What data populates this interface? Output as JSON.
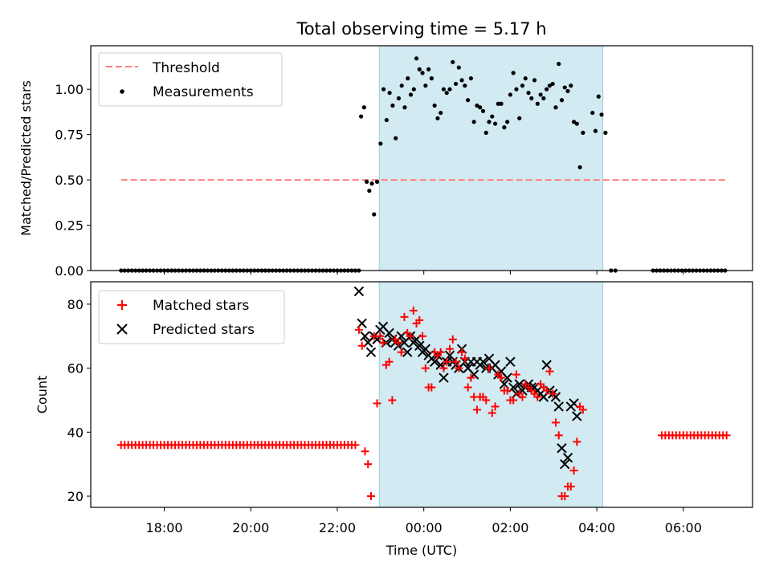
{
  "chart_data": {
    "type": "scatter",
    "title": "Total observing time = 5.17 h",
    "xlabel": "Time (UTC)",
    "xticks": [
      {
        "hour": 18,
        "label": "18:00"
      },
      {
        "hour": 20,
        "label": "20:00"
      },
      {
        "hour": 22,
        "label": "22:00"
      },
      {
        "hour": 24,
        "label": "00:00"
      },
      {
        "hour": 26,
        "label": "02:00"
      },
      {
        "hour": 28,
        "label": "04:00"
      },
      {
        "hour": 30,
        "label": "06:00"
      }
    ],
    "xlim": [
      16.3,
      31.6
    ],
    "shaded_interval": [
      22.97,
      28.14
    ],
    "colors": {
      "shade": "#add8e6",
      "threshold": "#ff7f7f",
      "measurements": "#000000",
      "matched": "#ff0000",
      "predicted": "#000000"
    },
    "panels": [
      {
        "ylabel": "Matched/Predicted stars",
        "ylim": [
          0,
          1.24
        ],
        "yticks": [
          "0.00",
          "0.25",
          "0.50",
          "0.75",
          "1.00"
        ],
        "legend": [
          "Threshold",
          "Measurements"
        ],
        "threshold": {
          "x": [
            17.0,
            31.0
          ],
          "y": 0.5
        },
        "measurements": {
          "zeros_before": [
            17.0,
            22.55
          ],
          "zeros_after": [
            29.3,
            31.0
          ],
          "zeros_extra": [
            28.33,
            28.43
          ],
          "points": [
            [
              22.55,
              0.85
            ],
            [
              22.62,
              0.9
            ],
            [
              22.68,
              0.49
            ],
            [
              22.74,
              0.44
            ],
            [
              22.8,
              0.48
            ],
            [
              22.85,
              0.31
            ],
            [
              22.92,
              0.49
            ],
            [
              23.0,
              0.7
            ],
            [
              23.07,
              1.0
            ],
            [
              23.14,
              0.83
            ],
            [
              23.21,
              0.98
            ],
            [
              23.28,
              0.91
            ],
            [
              23.35,
              0.73
            ],
            [
              23.42,
              0.95
            ],
            [
              23.49,
              1.02
            ],
            [
              23.56,
              0.9
            ],
            [
              23.63,
              1.06
            ],
            [
              23.7,
              0.97
            ],
            [
              23.77,
              1.0
            ],
            [
              23.83,
              1.17
            ],
            [
              23.9,
              1.11
            ],
            [
              23.97,
              1.09
            ],
            [
              24.04,
              1.02
            ],
            [
              24.11,
              1.11
            ],
            [
              24.18,
              1.06
            ],
            [
              24.25,
              0.91
            ],
            [
              24.32,
              0.84
            ],
            [
              24.39,
              0.87
            ],
            [
              24.46,
              1.0
            ],
            [
              24.53,
              0.98
            ],
            [
              24.6,
              1.0
            ],
            [
              24.67,
              1.15
            ],
            [
              24.74,
              1.03
            ],
            [
              24.81,
              1.12
            ],
            [
              24.88,
              1.05
            ],
            [
              24.95,
              1.02
            ],
            [
              25.02,
              0.94
            ],
            [
              25.09,
              1.06
            ],
            [
              25.16,
              0.82
            ],
            [
              25.23,
              0.91
            ],
            [
              25.3,
              0.9
            ],
            [
              25.37,
              0.88
            ],
            [
              25.44,
              0.76
            ],
            [
              25.51,
              0.82
            ],
            [
              25.58,
              0.85
            ],
            [
              25.65,
              0.81
            ],
            [
              25.72,
              0.92
            ],
            [
              25.79,
              0.92
            ],
            [
              25.86,
              0.79
            ],
            [
              25.93,
              0.82
            ],
            [
              26.0,
              0.97
            ],
            [
              26.07,
              1.09
            ],
            [
              26.14,
              1.0
            ],
            [
              26.21,
              0.84
            ],
            [
              26.28,
              1.02
            ],
            [
              26.35,
              1.06
            ],
            [
              26.42,
              0.98
            ],
            [
              26.49,
              0.95
            ],
            [
              26.56,
              1.05
            ],
            [
              26.63,
              0.92
            ],
            [
              26.7,
              0.97
            ],
            [
              26.77,
              0.95
            ],
            [
              26.84,
              1.0
            ],
            [
              26.91,
              1.02
            ],
            [
              26.98,
              1.03
            ],
            [
              27.05,
              0.9
            ],
            [
              27.12,
              1.14
            ],
            [
              27.19,
              0.94
            ],
            [
              27.26,
              1.01
            ],
            [
              27.33,
              0.99
            ],
            [
              27.4,
              1.02
            ],
            [
              27.47,
              0.82
            ],
            [
              27.54,
              0.81
            ],
            [
              27.61,
              0.57
            ],
            [
              27.68,
              0.76
            ],
            [
              27.9,
              0.87
            ],
            [
              27.97,
              0.77
            ],
            [
              28.04,
              0.96
            ],
            [
              28.11,
              0.86
            ],
            [
              28.2,
              0.76
            ]
          ]
        }
      },
      {
        "ylabel": "Count",
        "ylim": [
          16.5,
          87
        ],
        "yticks": [
          "20",
          "40",
          "60",
          "80"
        ],
        "legend": [
          "Matched stars",
          "Predicted stars"
        ],
        "matched": {
          "baseline_before": {
            "x": [
              17.0,
              22.42
            ],
            "y": 36
          },
          "baseline_after": {
            "x": [
              29.5,
              31.0
            ],
            "y": 39
          },
          "points": [
            [
              22.5,
              72
            ],
            [
              22.57,
              67
            ],
            [
              22.64,
              34
            ],
            [
              22.71,
              30
            ],
            [
              22.78,
              20
            ],
            [
              22.85,
              70
            ],
            [
              22.92,
              49
            ],
            [
              22.99,
              70
            ],
            [
              23.06,
              68
            ],
            [
              23.13,
              61
            ],
            [
              23.2,
              62
            ],
            [
              23.27,
              50
            ],
            [
              23.34,
              69
            ],
            [
              23.41,
              68
            ],
            [
              23.48,
              65
            ],
            [
              23.55,
              76
            ],
            [
              23.62,
              71
            ],
            [
              23.69,
              70
            ],
            [
              23.76,
              78
            ],
            [
              23.83,
              74
            ],
            [
              23.9,
              75
            ],
            [
              23.97,
              70
            ],
            [
              24.04,
              60
            ],
            [
              24.11,
              54
            ],
            [
              24.18,
              54
            ],
            [
              24.25,
              65
            ],
            [
              24.32,
              64
            ],
            [
              24.39,
              65
            ],
            [
              24.46,
              60
            ],
            [
              24.53,
              62
            ],
            [
              24.6,
              66
            ],
            [
              24.67,
              69
            ],
            [
              24.74,
              62
            ],
            [
              24.81,
              60
            ],
            [
              24.88,
              65
            ],
            [
              24.95,
              63
            ],
            [
              25.02,
              54
            ],
            [
              25.09,
              57
            ],
            [
              25.16,
              51
            ],
            [
              25.23,
              47
            ],
            [
              25.3,
              51
            ],
            [
              25.37,
              51
            ],
            [
              25.44,
              50
            ],
            [
              25.51,
              60
            ],
            [
              25.58,
              46
            ],
            [
              25.65,
              48
            ],
            [
              25.72,
              58
            ],
            [
              25.79,
              57
            ],
            [
              25.86,
              53
            ],
            [
              25.93,
              53
            ],
            [
              26.0,
              50
            ],
            [
              26.07,
              50
            ],
            [
              26.14,
              58
            ],
            [
              26.21,
              52
            ],
            [
              26.28,
              51
            ],
            [
              26.35,
              55
            ],
            [
              26.42,
              54
            ],
            [
              26.49,
              53
            ],
            [
              26.56,
              52
            ],
            [
              26.63,
              51
            ],
            [
              26.7,
              55
            ],
            [
              26.77,
              54
            ],
            [
              26.84,
              53
            ],
            [
              26.91,
              59
            ],
            [
              26.98,
              52
            ],
            [
              27.05,
              43
            ],
            [
              27.12,
              39
            ],
            [
              27.19,
              20
            ],
            [
              27.26,
              20
            ],
            [
              27.33,
              23
            ],
            [
              27.4,
              23
            ],
            [
              27.47,
              28
            ],
            [
              27.54,
              37
            ],
            [
              27.61,
              48
            ],
            [
              27.68,
              47
            ]
          ]
        },
        "predicted": {
          "points": [
            [
              22.5,
              84
            ],
            [
              22.57,
              74
            ],
            [
              22.64,
              70
            ],
            [
              22.71,
              68
            ],
            [
              22.78,
              65
            ],
            [
              22.85,
              70
            ],
            [
              22.92,
              69
            ],
            [
              22.99,
              72
            ],
            [
              23.06,
              73
            ],
            [
              23.13,
              68
            ],
            [
              23.2,
              71
            ],
            [
              23.27,
              69
            ],
            [
              23.34,
              68
            ],
            [
              23.41,
              67
            ],
            [
              23.48,
              70
            ],
            [
              23.55,
              68
            ],
            [
              23.62,
              65
            ],
            [
              23.69,
              70
            ],
            [
              23.76,
              68
            ],
            [
              23.83,
              69
            ],
            [
              23.9,
              67
            ],
            [
              23.97,
              65
            ],
            [
              24.04,
              66
            ],
            [
              24.11,
              64
            ],
            [
              24.18,
              63
            ],
            [
              24.25,
              62
            ],
            [
              24.32,
              64
            ],
            [
              24.39,
              61
            ],
            [
              24.46,
              57
            ],
            [
              24.53,
              62
            ],
            [
              24.6,
              64
            ],
            [
              24.67,
              62
            ],
            [
              24.74,
              61
            ],
            [
              24.81,
              60
            ],
            [
              24.88,
              66
            ],
            [
              24.95,
              62
            ],
            [
              25.02,
              60
            ],
            [
              25.09,
              62
            ],
            [
              25.16,
              58
            ],
            [
              25.23,
              62
            ],
            [
              25.3,
              61
            ],
            [
              25.37,
              62
            ],
            [
              25.44,
              60
            ],
            [
              25.51,
              63
            ],
            [
              25.58,
              60
            ],
            [
              25.65,
              61
            ],
            [
              25.72,
              58
            ],
            [
              25.79,
              59
            ],
            [
              25.86,
              55
            ],
            [
              25.93,
              57
            ],
            [
              26.0,
              62
            ],
            [
              26.07,
              54
            ],
            [
              26.14,
              52
            ],
            [
              26.21,
              55
            ],
            [
              26.28,
              53
            ],
            [
              26.35,
              54
            ],
            [
              26.42,
              55
            ],
            [
              26.49,
              54
            ],
            [
              26.56,
              54
            ],
            [
              26.63,
              53
            ],
            [
              26.7,
              52
            ],
            [
              26.77,
              51
            ],
            [
              26.84,
              61
            ],
            [
              26.91,
              53
            ],
            [
              26.98,
              52
            ],
            [
              27.05,
              51
            ],
            [
              27.12,
              48
            ],
            [
              27.19,
              35
            ],
            [
              27.26,
              30
            ],
            [
              27.33,
              32
            ],
            [
              27.4,
              48
            ],
            [
              27.47,
              49
            ],
            [
              27.54,
              45
            ]
          ]
        }
      }
    ]
  }
}
